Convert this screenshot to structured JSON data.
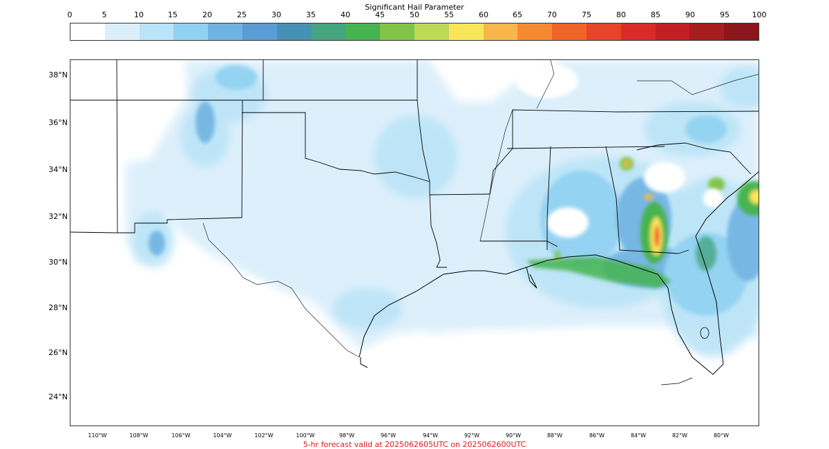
{
  "colorbar": {
    "title": "Significant Hail Parameter",
    "ticks": [
      "0",
      "5",
      "10",
      "15",
      "20",
      "25",
      "30",
      "35",
      "40",
      "45",
      "50",
      "55",
      "60",
      "65",
      "70",
      "75",
      "80",
      "85",
      "90",
      "95",
      "100"
    ],
    "colors": [
      "#ffffff",
      "#dbeffb",
      "#bae4f7",
      "#91d2f2",
      "#6fb3e3",
      "#5a9cd6",
      "#4692b4",
      "#44a57f",
      "#46b44f",
      "#82c44a",
      "#bfd957",
      "#f9e55a",
      "#f9b64a",
      "#f68a33",
      "#f06329",
      "#e64529",
      "#da2a29",
      "#c21f24",
      "#a71c1f",
      "#8c161b"
    ]
  },
  "map": {
    "latitude_labels": [
      "38°N",
      "36°N",
      "34°N",
      "32°N",
      "30°N",
      "28°N",
      "26°N",
      "24°N"
    ],
    "longitude_labels": [
      "110°W",
      "108°W",
      "106°W",
      "104°W",
      "102°W",
      "100°W",
      "98°W",
      "96°W",
      "94°W",
      "92°W",
      "90°W",
      "88°W",
      "86°W",
      "84°W",
      "82°W",
      "80°W"
    ]
  },
  "footer": "5-hr forecast valid at 2025062605UTC on 2025062600UTC"
}
